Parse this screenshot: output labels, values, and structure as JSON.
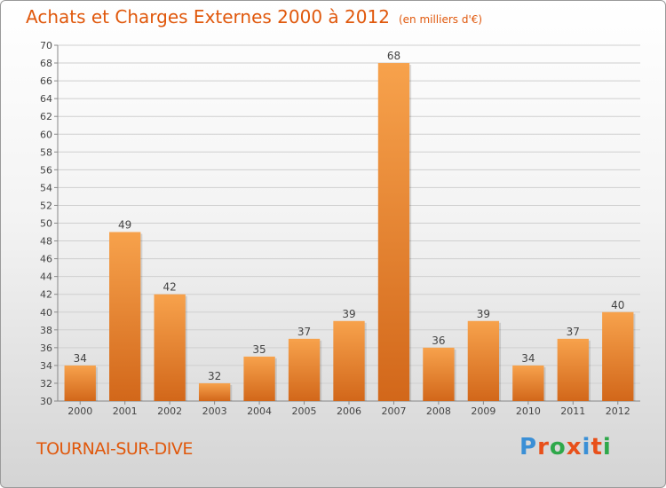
{
  "title": "Achats et Charges Externes 2000 à 2012",
  "unit": "(en milliers d'€)",
  "city": "TOURNAI-SUR-DIVE",
  "logo": {
    "text": "Proxiti",
    "letter_colors": [
      "#3a8fd6",
      "#e8501a",
      "#2ea84a",
      "#e8501a",
      "#3a8fd6",
      "#e8501a",
      "#2ea84a"
    ]
  },
  "colors": {
    "accent": "#e0580c",
    "bar_light": "#f7a24c",
    "bar_dark": "#d2671a",
    "grid": "#cfcfcf"
  },
  "chart_data": {
    "type": "bar",
    "categories": [
      "2000",
      "2001",
      "2002",
      "2003",
      "2004",
      "2005",
      "2006",
      "2007",
      "2008",
      "2009",
      "2010",
      "2011",
      "2012"
    ],
    "values": [
      34,
      49,
      42,
      32,
      35,
      37,
      39,
      68,
      36,
      39,
      34,
      37,
      40
    ],
    "ylim": [
      30,
      70
    ],
    "yticks": [
      30,
      32,
      34,
      36,
      38,
      40,
      42,
      44,
      46,
      48,
      50,
      52,
      54,
      56,
      58,
      60,
      62,
      64,
      66,
      68,
      70
    ],
    "grid": true
  }
}
